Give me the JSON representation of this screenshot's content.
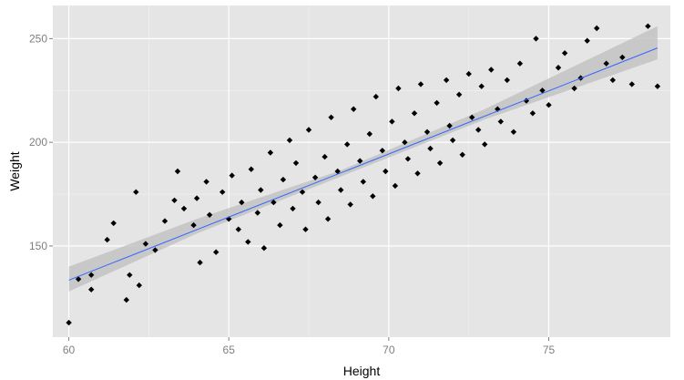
{
  "chart_data": {
    "type": "scatter",
    "title": "",
    "xlabel": "Height",
    "ylabel": "Weight",
    "xlim": [
      59.5,
      78.8
    ],
    "ylim": [
      106,
      266
    ],
    "x_ticks": [
      60,
      65,
      70,
      75
    ],
    "y_ticks": [
      150,
      200,
      250
    ],
    "x_tick_labels": [
      "60",
      "65",
      "70",
      "75"
    ],
    "y_tick_labels": [
      "150",
      "200",
      "250"
    ],
    "grid": true,
    "legend": "none",
    "colors": {
      "panel_background": "#e5e5e5",
      "grid_major": "#ffffff",
      "point": "#000000",
      "fit_line": "#3366ff",
      "confidence_band": "#bdbdbd"
    },
    "points": [
      [
        60,
        113
      ],
      [
        60.3,
        134
      ],
      [
        60.7,
        136
      ],
      [
        60.7,
        129
      ],
      [
        61.2,
        153
      ],
      [
        61.4,
        161
      ],
      [
        61.8,
        124
      ],
      [
        61.9,
        136
      ],
      [
        62.1,
        176
      ],
      [
        62.2,
        131
      ],
      [
        62.4,
        151
      ],
      [
        62.7,
        148
      ],
      [
        63.0,
        162
      ],
      [
        63.3,
        172
      ],
      [
        63.4,
        186
      ],
      [
        63.6,
        168
      ],
      [
        63.9,
        160
      ],
      [
        64.0,
        173
      ],
      [
        64.1,
        142
      ],
      [
        64.3,
        181
      ],
      [
        64.4,
        165
      ],
      [
        64.6,
        147
      ],
      [
        64.8,
        176
      ],
      [
        65.0,
        163
      ],
      [
        65.1,
        184
      ],
      [
        65.3,
        158
      ],
      [
        65.4,
        171
      ],
      [
        65.6,
        152
      ],
      [
        65.7,
        187
      ],
      [
        65.9,
        166
      ],
      [
        66.0,
        177
      ],
      [
        66.1,
        149
      ],
      [
        66.3,
        195
      ],
      [
        66.4,
        171
      ],
      [
        66.6,
        160
      ],
      [
        66.7,
        182
      ],
      [
        66.9,
        201
      ],
      [
        67.0,
        168
      ],
      [
        67.1,
        190
      ],
      [
        67.3,
        176
      ],
      [
        67.4,
        158
      ],
      [
        67.5,
        206
      ],
      [
        67.7,
        183
      ],
      [
        67.8,
        171
      ],
      [
        68.0,
        193
      ],
      [
        68.1,
        163
      ],
      [
        68.2,
        212
      ],
      [
        68.4,
        186
      ],
      [
        68.5,
        177
      ],
      [
        68.7,
        199
      ],
      [
        68.8,
        170
      ],
      [
        68.9,
        216
      ],
      [
        69.1,
        191
      ],
      [
        69.2,
        181
      ],
      [
        69.4,
        204
      ],
      [
        69.5,
        174
      ],
      [
        69.6,
        222
      ],
      [
        69.8,
        196
      ],
      [
        69.9,
        186
      ],
      [
        70.1,
        210
      ],
      [
        70.2,
        179
      ],
      [
        70.3,
        226
      ],
      [
        70.5,
        200
      ],
      [
        70.6,
        192
      ],
      [
        70.8,
        214
      ],
      [
        70.9,
        185
      ],
      [
        71.0,
        228
      ],
      [
        71.2,
        205
      ],
      [
        71.3,
        197
      ],
      [
        71.5,
        219
      ],
      [
        71.6,
        190
      ],
      [
        71.8,
        230
      ],
      [
        71.9,
        208
      ],
      [
        72.0,
        201
      ],
      [
        72.2,
        223
      ],
      [
        72.3,
        194
      ],
      [
        72.5,
        233
      ],
      [
        72.6,
        212
      ],
      [
        72.8,
        206
      ],
      [
        72.9,
        227
      ],
      [
        73.0,
        199
      ],
      [
        73.2,
        235
      ],
      [
        73.4,
        216
      ],
      [
        73.5,
        210
      ],
      [
        73.7,
        230
      ],
      [
        73.9,
        205
      ],
      [
        74.1,
        238
      ],
      [
        74.3,
        220
      ],
      [
        74.5,
        214
      ],
      [
        74.6,
        250
      ],
      [
        74.8,
        225
      ],
      [
        75.0,
        218
      ],
      [
        75.3,
        236
      ],
      [
        75.5,
        243
      ],
      [
        75.8,
        226
      ],
      [
        76.0,
        231
      ],
      [
        76.2,
        249
      ],
      [
        76.5,
        255
      ],
      [
        76.8,
        238
      ],
      [
        77.0,
        230
      ],
      [
        77.3,
        241
      ],
      [
        77.6,
        228
      ],
      [
        78.1,
        256
      ],
      [
        78.4,
        227
      ]
    ],
    "fit": {
      "x": [
        60,
        78.4
      ],
      "y": [
        133.5,
        245.5
      ]
    },
    "band": {
      "x": [
        60,
        64,
        68.5,
        73,
        78.4
      ],
      "lower": [
        128,
        156,
        183.5,
        211,
        240
      ],
      "upper": [
        140,
        163,
        186.5,
        216,
        256
      ]
    }
  }
}
